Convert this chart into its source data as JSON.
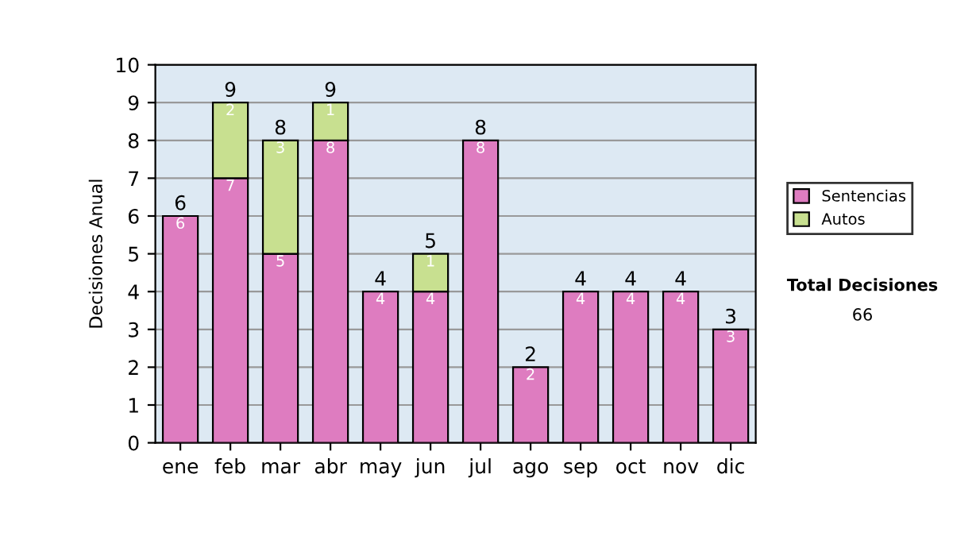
{
  "chart_data": {
    "type": "bar",
    "stacked": true,
    "ylabel": "Decisiones Anual",
    "categories": [
      "ene",
      "feb",
      "mar",
      "abr",
      "may",
      "jun",
      "jul",
      "ago",
      "sep",
      "oct",
      "nov",
      "dic"
    ],
    "series": [
      {
        "name": "Sentencias",
        "color": "#de7cc0",
        "values": [
          6,
          7,
          5,
          8,
          4,
          4,
          8,
          2,
          4,
          4,
          4,
          3
        ],
        "value_labels": [
          "6",
          "7",
          "5",
          "8",
          "4",
          "4",
          "8",
          "2",
          "4",
          "4",
          "4",
          "3"
        ]
      },
      {
        "name": "Autos",
        "color": "#c8e090",
        "values": [
          null,
          2,
          3,
          1,
          null,
          1,
          null,
          null,
          null,
          null,
          null,
          null
        ],
        "value_labels": [
          null,
          "2",
          "3",
          "1",
          null,
          "1",
          null,
          null,
          null,
          null,
          null,
          null
        ]
      }
    ],
    "totals": [
      "6",
      "9",
      "8",
      "9",
      "4",
      "5",
      "8",
      "2",
      "4",
      "4",
      "4",
      "3"
    ],
    "ylim": [
      0,
      10
    ],
    "yticks": [
      0,
      1,
      2,
      3,
      4,
      5,
      6,
      7,
      8,
      9,
      10
    ],
    "grid": "y",
    "legend": "right",
    "annotations": [
      "Total Decisiones",
      "66"
    ]
  }
}
